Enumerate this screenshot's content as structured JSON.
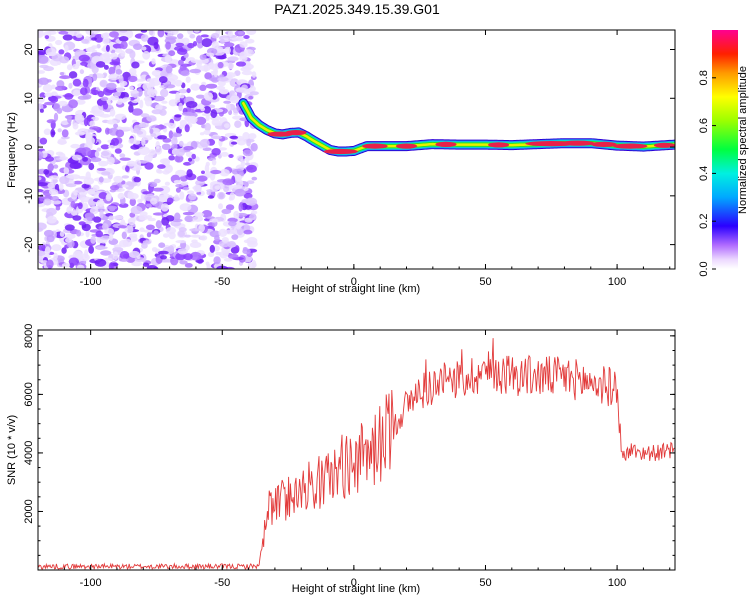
{
  "title": "PAZ1.2025.349.15.39.G01",
  "colors": {
    "series": "#e23b3b",
    "noise": "#7a2cf0",
    "ridge_core": "#e8204a",
    "ridge_mid": "#2fe01a",
    "ridge_edge": "#1a9cf0"
  },
  "chart_data": [
    {
      "type": "heatmap",
      "name": "spectrogram",
      "xlabel": "Height of straight line (km)",
      "ylabel": "Frequency (Hz)",
      "xlim": [
        -120,
        122
      ],
      "ylim": [
        -25,
        24
      ],
      "xticks": [
        -100,
        -50,
        0,
        50,
        100
      ],
      "yticks": [
        -20,
        -10,
        0,
        10,
        20
      ],
      "noise_region_x": [
        -120,
        -40
      ],
      "ridge": {
        "x": [
          -42,
          -39,
          -36,
          -33,
          -30,
          -27,
          -24,
          -21,
          -18,
          -15,
          -12,
          -9,
          -6,
          -3,
          0,
          5,
          10,
          20,
          30,
          40,
          50,
          60,
          70,
          80,
          90,
          100,
          110,
          122
        ],
        "y": [
          9,
          6,
          4.5,
          3.5,
          2.8,
          2.6,
          2.9,
          3.0,
          2.2,
          1.2,
          0.3,
          -0.6,
          -0.9,
          -0.9,
          -0.8,
          0.2,
          0.2,
          0.2,
          0.6,
          0.5,
          0.5,
          0.4,
          0.6,
          0.8,
          0.8,
          0.3,
          0.1,
          0.5
        ]
      },
      "colorbar": {
        "label": "Normalized spectral amplitude",
        "range": [
          0,
          1
        ],
        "ticks": [
          0.0,
          0.2,
          0.4,
          0.6,
          0.8
        ],
        "tick_labels": [
          "0.0",
          "0.2",
          "0.4",
          "0.6",
          "0.8"
        ]
      }
    },
    {
      "type": "line",
      "name": "snr",
      "xlabel": "Height of straight line (km)",
      "ylabel": "SNR (10 * v/v)",
      "xlim": [
        -120,
        122
      ],
      "ylim": [
        0,
        8200
      ],
      "xticks": [
        -100,
        -50,
        0,
        50,
        100
      ],
      "yticks": [
        2000,
        4000,
        6000,
        8000
      ],
      "trend": {
        "x": [
          -120,
          -40,
          -36,
          -34,
          -32,
          -28,
          -24,
          -20,
          -15,
          -10,
          -5,
          0,
          5,
          10,
          15,
          20,
          25,
          30,
          40,
          50,
          60,
          70,
          80,
          90,
          95,
          100,
          102,
          105,
          110,
          115,
          122
        ],
        "y": [
          120,
          120,
          150,
          1200,
          2200,
          2300,
          2600,
          2800,
          2900,
          3100,
          3500,
          3700,
          3900,
          4300,
          5000,
          5600,
          6100,
          6300,
          6500,
          6800,
          6700,
          6600,
          6600,
          6400,
          6300,
          6200,
          3800,
          4100,
          4000,
          4000,
          4100
        ]
      }
    }
  ]
}
